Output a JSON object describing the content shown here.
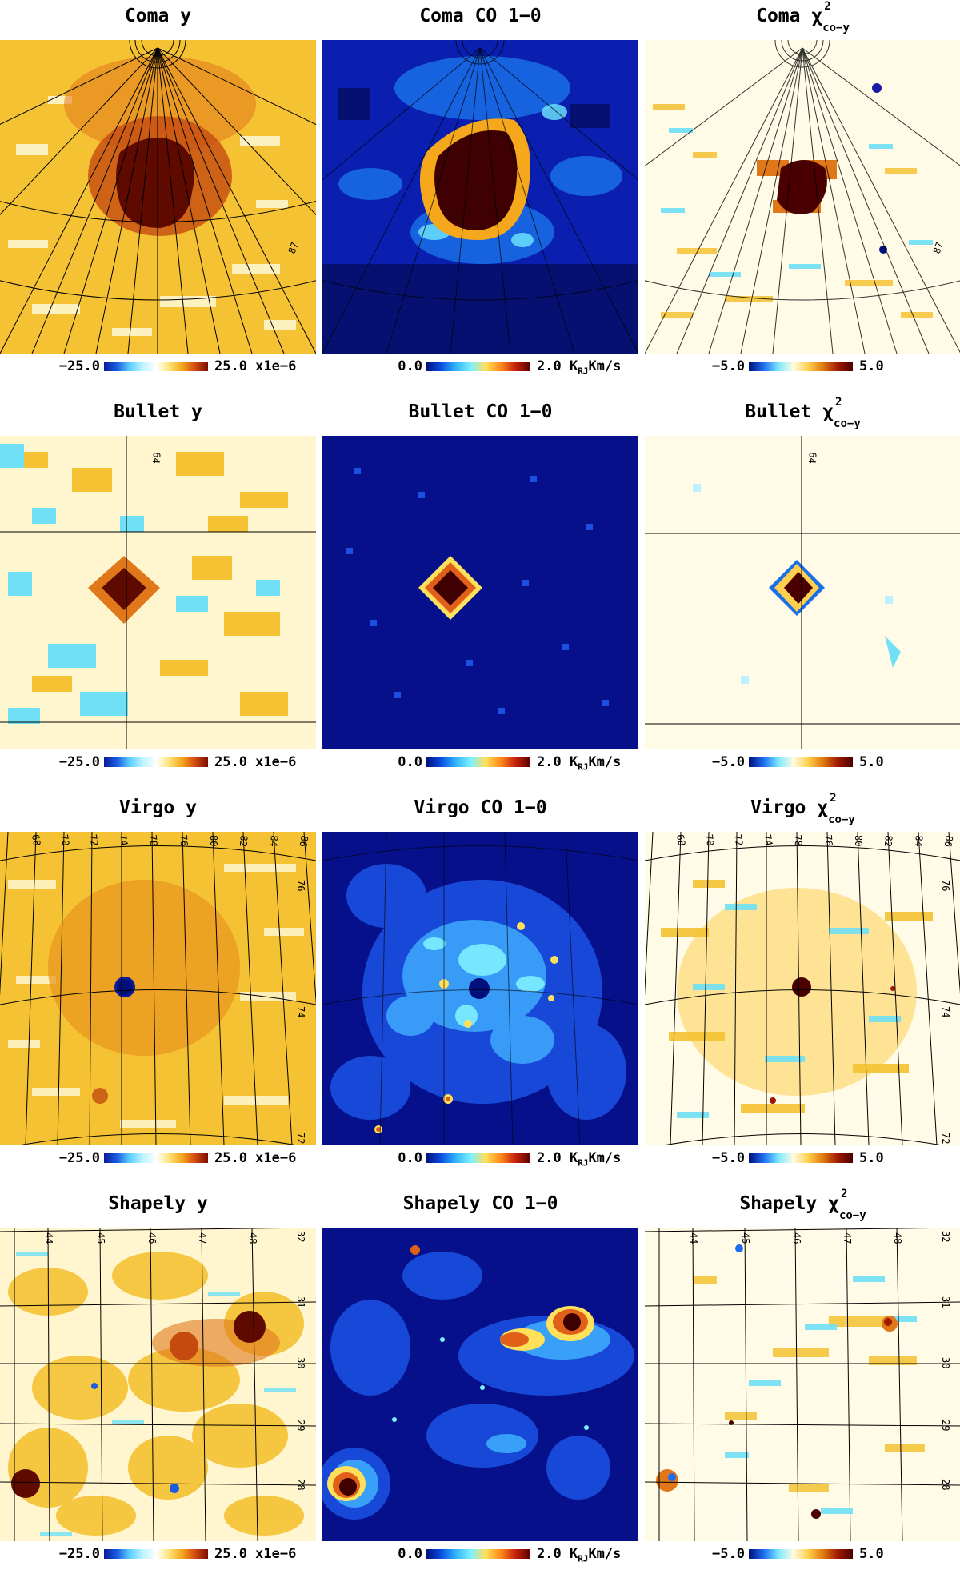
{
  "colors": {
    "y_bg": "#f4c232",
    "y_light": "#fff6cf",
    "y_core": "#5e0a00",
    "co_bg": "#06108a",
    "co_mid": "#1a6ee8",
    "co_core": "#3e0000",
    "chi_bg": "#fffbe6",
    "chi_core": "#4a0000",
    "cyan": "#6fe0f5"
  },
  "scales": {
    "y": {
      "lo": "−25.0",
      "hi": "25.0 x1e−6"
    },
    "co": {
      "lo": "0.0",
      "hi": "2.0 K",
      "hi_sub": "RJ",
      "hi_tail": "Km/s"
    },
    "chi": {
      "lo": "−5.0",
      "hi": "5.0"
    }
  },
  "clusters": [
    {
      "name": "Coma",
      "titles": {
        "y": "Coma y",
        "co": "Coma CO 1−0",
        "chi": "Coma χ"
      },
      "grid_labels": [
        "87"
      ]
    },
    {
      "name": "Bullet",
      "titles": {
        "y": "Bullet y",
        "co": "Bullet CO 1−0",
        "chi": "Bullet χ"
      },
      "grid_labels": [
        "64"
      ]
    },
    {
      "name": "Virgo",
      "titles": {
        "y": "Virgo y",
        "co": "Virgo CO 1−0",
        "chi": "Virgo χ"
      },
      "grid_labels": [
        "68",
        "70",
        "72",
        "74",
        "78",
        "76",
        "80",
        "82",
        "84",
        "86",
        "76",
        "74",
        "72"
      ]
    },
    {
      "name": "Shapely",
      "titles": {
        "y": "Shapely y",
        "co": "Shapely CO 1−0",
        "chi": "Shapely χ"
      },
      "grid_labels": [
        "44",
        "45",
        "46",
        "47",
        "48",
        "32",
        "31",
        "30",
        "29",
        "28"
      ]
    }
  ],
  "chi_sub": "co−y",
  "chi_sup": "2"
}
